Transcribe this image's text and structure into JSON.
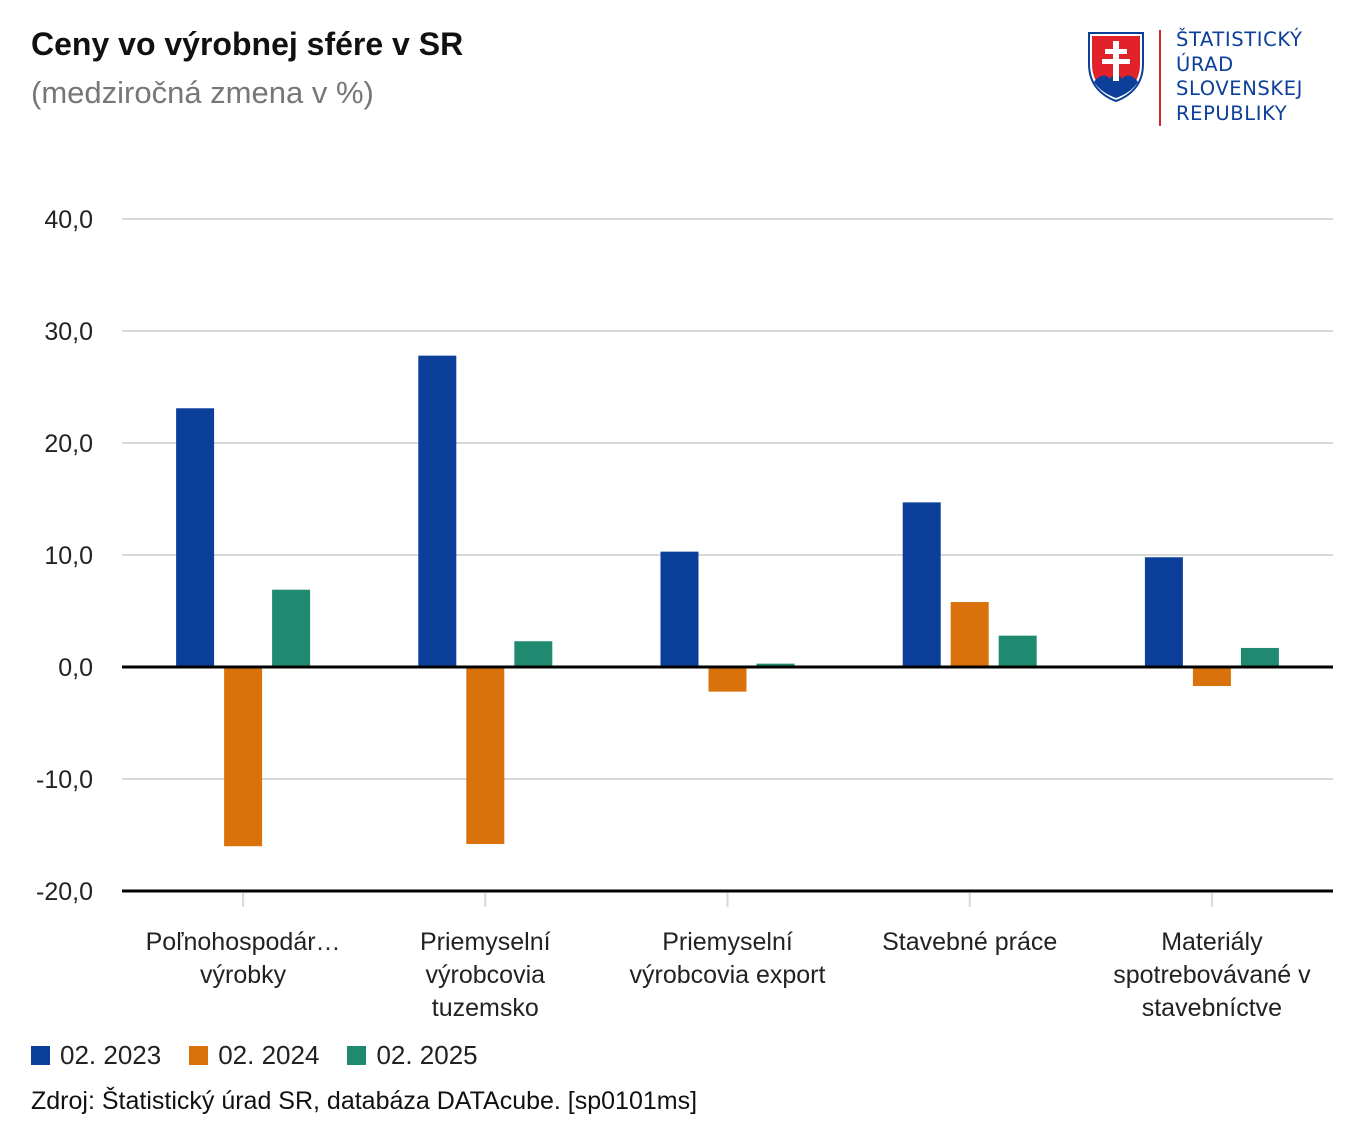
{
  "header": {
    "title": "Ceny vo výrobnej sfére v SR",
    "subtitle": "(medziročná zmena v %)"
  },
  "logo": {
    "lines": [
      "ŠTATISTICKÝ",
      "ÚRAD",
      "SLOVENSKEJ",
      "REPUBLIKY"
    ],
    "icon": "slovak-coat-of-arms-icon"
  },
  "colors": {
    "series": [
      "#0c3f9a",
      "#d9720a",
      "#1f8a70"
    ],
    "grid": "#d9d9d9",
    "axis": "#000000"
  },
  "chart_data": {
    "type": "bar",
    "title": "Ceny vo výrobnej sfére v SR",
    "subtitle": "(medziročná zmena v %)",
    "categories": [
      [
        "Poľnohospodár…",
        "výrobky"
      ],
      [
        "Priemyselní",
        "výrobcovia",
        "tuzemsko"
      ],
      [
        "Priemyselní",
        "výrobcovia export"
      ],
      [
        "Stavebné práce"
      ],
      [
        "Materiály",
        "spotrebovávané v",
        "stavebníctve"
      ]
    ],
    "series": [
      {
        "name": "02. 2023",
        "values": [
          23.1,
          27.8,
          10.3,
          14.7,
          9.8
        ]
      },
      {
        "name": "02. 2024",
        "values": [
          -16.0,
          -15.8,
          -2.2,
          5.8,
          -1.7
        ]
      },
      {
        "name": "02. 2025",
        "values": [
          6.9,
          2.3,
          0.3,
          2.8,
          1.7
        ]
      }
    ],
    "yticks": [
      "40,0",
      "30,0",
      "20,0",
      "10,0",
      "0,0",
      "-10,0",
      "-20,0"
    ],
    "ylim": [
      -20,
      40
    ],
    "xlabel": "",
    "ylabel": "",
    "grid": true,
    "legend": "bottom-left"
  },
  "source": "Zdroj: Štatistický úrad SR, databáza DATAcube. [sp0101ms]"
}
